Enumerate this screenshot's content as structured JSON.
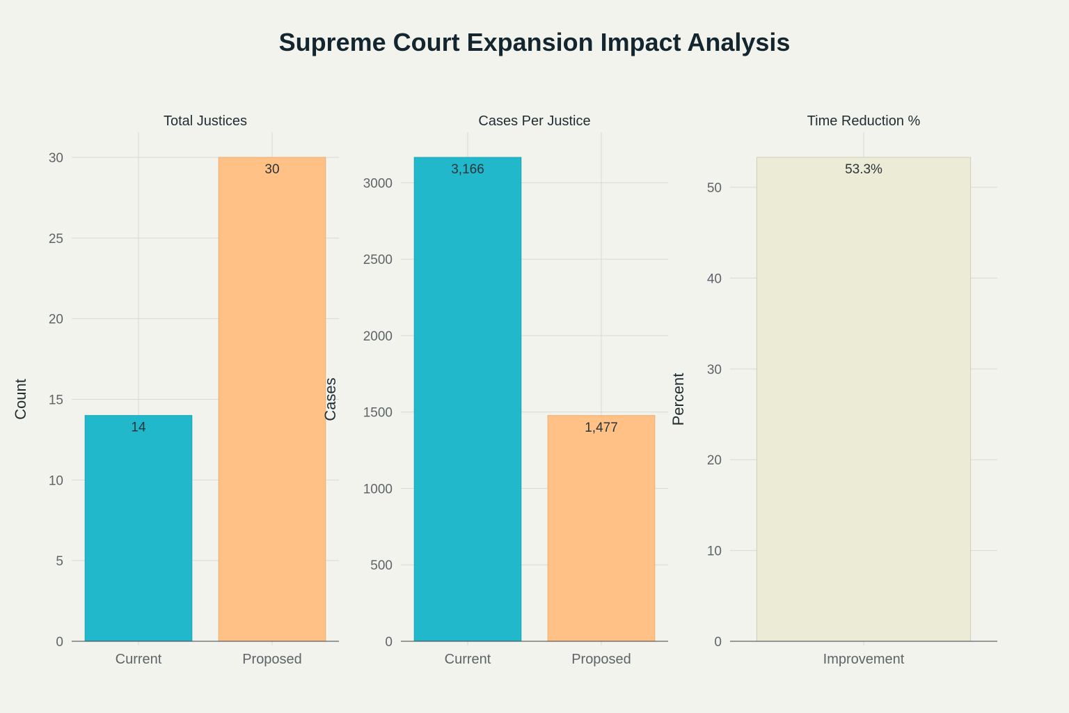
{
  "title": "Supreme Court Expansion Impact Analysis",
  "colors": {
    "current": "#21b8cc",
    "proposed": "#ffc185",
    "improvement": "#ecebd6",
    "improvement_border": "#cfcfb8"
  },
  "chart_data": [
    {
      "type": "bar",
      "title": "Total Justices",
      "ylabel": "Count",
      "categories": [
        "Current",
        "Proposed"
      ],
      "values": [
        14,
        30
      ],
      "data_labels": [
        "14",
        "30"
      ],
      "ylim": [
        0,
        30
      ],
      "yticks": [
        0,
        5,
        10,
        15,
        20,
        25,
        30
      ],
      "grid": true
    },
    {
      "type": "bar",
      "title": "Cases Per Justice",
      "ylabel": "Cases",
      "categories": [
        "Current",
        "Proposed"
      ],
      "values": [
        3166,
        1477
      ],
      "data_labels": [
        "3,166",
        "1,477"
      ],
      "ylim": [
        0,
        3166
      ],
      "yticks": [
        0,
        500,
        1000,
        1500,
        2000,
        2500,
        3000
      ],
      "grid": true
    },
    {
      "type": "bar",
      "title": "Time Reduction %",
      "ylabel": "Percent",
      "categories": [
        "Improvement"
      ],
      "values": [
        53.3
      ],
      "data_labels": [
        "53.3%"
      ],
      "ylim": [
        0,
        53.3
      ],
      "yticks": [
        0,
        10,
        20,
        30,
        40,
        50
      ],
      "grid": true
    }
  ]
}
